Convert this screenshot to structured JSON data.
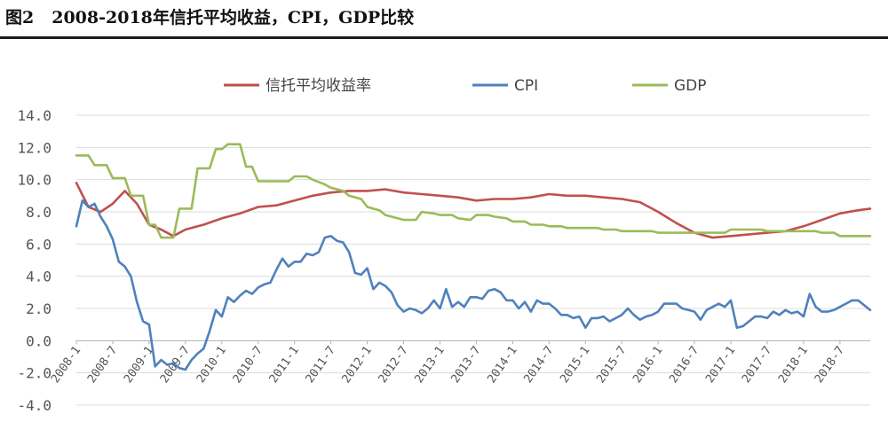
{
  "figure": {
    "number": "图2",
    "title": "2008-2018年信托平均收益，CPI，GDP比较"
  },
  "colors": {
    "trust": "#c0504d",
    "cpi": "#4f81bd",
    "gdp": "#9bbb59",
    "grid": "#dcdcdc",
    "axis": "#b0b0b0"
  },
  "chart_data": {
    "type": "line",
    "ylim": [
      -4.0,
      14.0
    ],
    "yticks": [
      "14.0",
      "12.0",
      "10.0",
      "8.0",
      "6.0",
      "4.0",
      "2.0",
      "0.0",
      "-2.0",
      "-4.0"
    ],
    "x_start": "2008-01",
    "x_end": "2018-12",
    "xticks": [
      "2008-1",
      "2008-7",
      "2009-1",
      "2009-7",
      "2010-1",
      "2010-7",
      "2011-1",
      "2011-7",
      "2012-1",
      "2012-7",
      "2013-1",
      "2013-7",
      "2014-1",
      "2014-7",
      "2015-1",
      "2015-7",
      "2016-1",
      "2016-7",
      "2017-1",
      "2017-7",
      "2018-1",
      "2018-7"
    ],
    "grid": true,
    "legend_position": "top",
    "series": [
      {
        "name": "信托平均收益率",
        "color_key": "trust",
        "points": [
          [
            "2008-01",
            9.8
          ],
          [
            "2008-03",
            8.3
          ],
          [
            "2008-05",
            8.0
          ],
          [
            "2008-07",
            8.5
          ],
          [
            "2008-09",
            9.3
          ],
          [
            "2008-11",
            8.5
          ],
          [
            "2009-01",
            7.2
          ],
          [
            "2009-03",
            6.9
          ],
          [
            "2009-05",
            6.5
          ],
          [
            "2009-07",
            6.9
          ],
          [
            "2009-10",
            7.2
          ],
          [
            "2010-01",
            7.6
          ],
          [
            "2010-04",
            7.9
          ],
          [
            "2010-07",
            8.3
          ],
          [
            "2010-10",
            8.4
          ],
          [
            "2011-01",
            8.7
          ],
          [
            "2011-04",
            9.0
          ],
          [
            "2011-07",
            9.2
          ],
          [
            "2011-10",
            9.3
          ],
          [
            "2012-01",
            9.3
          ],
          [
            "2012-04",
            9.4
          ],
          [
            "2012-07",
            9.2
          ],
          [
            "2012-10",
            9.1
          ],
          [
            "2013-01",
            9.0
          ],
          [
            "2013-04",
            8.9
          ],
          [
            "2013-07",
            8.7
          ],
          [
            "2013-10",
            8.8
          ],
          [
            "2014-01",
            8.8
          ],
          [
            "2014-04",
            8.9
          ],
          [
            "2014-07",
            9.1
          ],
          [
            "2014-10",
            9.0
          ],
          [
            "2015-01",
            9.0
          ],
          [
            "2015-04",
            8.9
          ],
          [
            "2015-07",
            8.8
          ],
          [
            "2015-10",
            8.6
          ],
          [
            "2016-01",
            8.0
          ],
          [
            "2016-04",
            7.3
          ],
          [
            "2016-07",
            6.7
          ],
          [
            "2016-10",
            6.4
          ],
          [
            "2017-01",
            6.5
          ],
          [
            "2017-04",
            6.6
          ],
          [
            "2017-07",
            6.7
          ],
          [
            "2017-10",
            6.8
          ],
          [
            "2018-01",
            7.1
          ],
          [
            "2018-04",
            7.5
          ],
          [
            "2018-07",
            7.9
          ],
          [
            "2018-10",
            8.1
          ],
          [
            "2018-12",
            8.2
          ]
        ]
      },
      {
        "name": "CPI",
        "color_key": "cpi",
        "points": [
          [
            "2008-01",
            7.1
          ],
          [
            "2008-02",
            8.7
          ],
          [
            "2008-03",
            8.3
          ],
          [
            "2008-04",
            8.5
          ],
          [
            "2008-05",
            7.7
          ],
          [
            "2008-06",
            7.1
          ],
          [
            "2008-07",
            6.3
          ],
          [
            "2008-08",
            4.9
          ],
          [
            "2008-09",
            4.6
          ],
          [
            "2008-10",
            4.0
          ],
          [
            "2008-11",
            2.4
          ],
          [
            "2008-12",
            1.2
          ],
          [
            "2009-01",
            1.0
          ],
          [
            "2009-02",
            -1.6
          ],
          [
            "2009-03",
            -1.2
          ],
          [
            "2009-04",
            -1.5
          ],
          [
            "2009-05",
            -1.4
          ],
          [
            "2009-06",
            -1.7
          ],
          [
            "2009-07",
            -1.8
          ],
          [
            "2009-08",
            -1.2
          ],
          [
            "2009-09",
            -0.8
          ],
          [
            "2009-10",
            -0.5
          ],
          [
            "2009-11",
            0.6
          ],
          [
            "2009-12",
            1.9
          ],
          [
            "2010-01",
            1.5
          ],
          [
            "2010-02",
            2.7
          ],
          [
            "2010-03",
            2.4
          ],
          [
            "2010-04",
            2.8
          ],
          [
            "2010-05",
            3.1
          ],
          [
            "2010-06",
            2.9
          ],
          [
            "2010-07",
            3.3
          ],
          [
            "2010-08",
            3.5
          ],
          [
            "2010-09",
            3.6
          ],
          [
            "2010-10",
            4.4
          ],
          [
            "2010-11",
            5.1
          ],
          [
            "2010-12",
            4.6
          ],
          [
            "2011-01",
            4.9
          ],
          [
            "2011-02",
            4.9
          ],
          [
            "2011-03",
            5.4
          ],
          [
            "2011-04",
            5.3
          ],
          [
            "2011-05",
            5.5
          ],
          [
            "2011-06",
            6.4
          ],
          [
            "2011-07",
            6.5
          ],
          [
            "2011-08",
            6.2
          ],
          [
            "2011-09",
            6.1
          ],
          [
            "2011-10",
            5.5
          ],
          [
            "2011-11",
            4.2
          ],
          [
            "2011-12",
            4.1
          ],
          [
            "2012-01",
            4.5
          ],
          [
            "2012-02",
            3.2
          ],
          [
            "2012-03",
            3.6
          ],
          [
            "2012-04",
            3.4
          ],
          [
            "2012-05",
            3.0
          ],
          [
            "2012-06",
            2.2
          ],
          [
            "2012-07",
            1.8
          ],
          [
            "2012-08",
            2.0
          ],
          [
            "2012-09",
            1.9
          ],
          [
            "2012-10",
            1.7
          ],
          [
            "2012-11",
            2.0
          ],
          [
            "2012-12",
            2.5
          ],
          [
            "2013-01",
            2.0
          ],
          [
            "2013-02",
            3.2
          ],
          [
            "2013-03",
            2.1
          ],
          [
            "2013-04",
            2.4
          ],
          [
            "2013-05",
            2.1
          ],
          [
            "2013-06",
            2.7
          ],
          [
            "2013-07",
            2.7
          ],
          [
            "2013-08",
            2.6
          ],
          [
            "2013-09",
            3.1
          ],
          [
            "2013-10",
            3.2
          ],
          [
            "2013-11",
            3.0
          ],
          [
            "2013-12",
            2.5
          ],
          [
            "2014-01",
            2.5
          ],
          [
            "2014-02",
            2.0
          ],
          [
            "2014-03",
            2.4
          ],
          [
            "2014-04",
            1.8
          ],
          [
            "2014-05",
            2.5
          ],
          [
            "2014-06",
            2.3
          ],
          [
            "2014-07",
            2.3
          ],
          [
            "2014-08",
            2.0
          ],
          [
            "2014-09",
            1.6
          ],
          [
            "2014-10",
            1.6
          ],
          [
            "2014-11",
            1.4
          ],
          [
            "2014-12",
            1.5
          ],
          [
            "2015-01",
            0.8
          ],
          [
            "2015-02",
            1.4
          ],
          [
            "2015-03",
            1.4
          ],
          [
            "2015-04",
            1.5
          ],
          [
            "2015-05",
            1.2
          ],
          [
            "2015-06",
            1.4
          ],
          [
            "2015-07",
            1.6
          ],
          [
            "2015-08",
            2.0
          ],
          [
            "2015-09",
            1.6
          ],
          [
            "2015-10",
            1.3
          ],
          [
            "2015-11",
            1.5
          ],
          [
            "2015-12",
            1.6
          ],
          [
            "2016-01",
            1.8
          ],
          [
            "2016-02",
            2.3
          ],
          [
            "2016-03",
            2.3
          ],
          [
            "2016-04",
            2.3
          ],
          [
            "2016-05",
            2.0
          ],
          [
            "2016-06",
            1.9
          ],
          [
            "2016-07",
            1.8
          ],
          [
            "2016-08",
            1.3
          ],
          [
            "2016-09",
            1.9
          ],
          [
            "2016-10",
            2.1
          ],
          [
            "2016-11",
            2.3
          ],
          [
            "2016-12",
            2.1
          ],
          [
            "2017-01",
            2.5
          ],
          [
            "2017-02",
            0.8
          ],
          [
            "2017-03",
            0.9
          ],
          [
            "2017-04",
            1.2
          ],
          [
            "2017-05",
            1.5
          ],
          [
            "2017-06",
            1.5
          ],
          [
            "2017-07",
            1.4
          ],
          [
            "2017-08",
            1.8
          ],
          [
            "2017-09",
            1.6
          ],
          [
            "2017-10",
            1.9
          ],
          [
            "2017-11",
            1.7
          ],
          [
            "2017-12",
            1.8
          ],
          [
            "2018-01",
            1.5
          ],
          [
            "2018-02",
            2.9
          ],
          [
            "2018-03",
            2.1
          ],
          [
            "2018-04",
            1.8
          ],
          [
            "2018-05",
            1.8
          ],
          [
            "2018-06",
            1.9
          ],
          [
            "2018-07",
            2.1
          ],
          [
            "2018-08",
            2.3
          ],
          [
            "2018-09",
            2.5
          ],
          [
            "2018-10",
            2.5
          ],
          [
            "2018-11",
            2.2
          ],
          [
            "2018-12",
            1.9
          ]
        ]
      },
      {
        "name": "GDP",
        "color_key": "gdp",
        "points": [
          [
            "2008-01",
            11.5
          ],
          [
            "2008-03",
            11.5
          ],
          [
            "2008-04",
            10.9
          ],
          [
            "2008-06",
            10.9
          ],
          [
            "2008-07",
            10.1
          ],
          [
            "2008-09",
            10.1
          ],
          [
            "2008-10",
            9.0
          ],
          [
            "2008-12",
            9.0
          ],
          [
            "2009-01",
            7.2
          ],
          [
            "2009-02",
            7.2
          ],
          [
            "2009-03",
            6.4
          ],
          [
            "2009-05",
            6.4
          ],
          [
            "2009-06",
            8.2
          ],
          [
            "2009-08",
            8.2
          ],
          [
            "2009-09",
            10.7
          ],
          [
            "2009-11",
            10.7
          ],
          [
            "2009-12",
            11.9
          ],
          [
            "2010-01",
            11.9
          ],
          [
            "2010-02",
            12.2
          ],
          [
            "2010-04",
            12.2
          ],
          [
            "2010-05",
            10.8
          ],
          [
            "2010-06",
            10.8
          ],
          [
            "2010-07",
            9.9
          ],
          [
            "2010-09",
            9.9
          ],
          [
            "2010-10",
            9.9
          ],
          [
            "2010-12",
            9.9
          ],
          [
            "2011-01",
            10.2
          ],
          [
            "2011-03",
            10.2
          ],
          [
            "2011-04",
            10.0
          ],
          [
            "2011-06",
            9.7
          ],
          [
            "2011-07",
            9.5
          ],
          [
            "2011-09",
            9.3
          ],
          [
            "2011-10",
            9.0
          ],
          [
            "2011-12",
            8.8
          ],
          [
            "2012-01",
            8.3
          ],
          [
            "2012-03",
            8.1
          ],
          [
            "2012-04",
            7.8
          ],
          [
            "2012-06",
            7.6
          ],
          [
            "2012-07",
            7.5
          ],
          [
            "2012-09",
            7.5
          ],
          [
            "2012-10",
            8.0
          ],
          [
            "2012-12",
            7.9
          ],
          [
            "2013-01",
            7.8
          ],
          [
            "2013-03",
            7.8
          ],
          [
            "2013-04",
            7.6
          ],
          [
            "2013-06",
            7.5
          ],
          [
            "2013-07",
            7.8
          ],
          [
            "2013-09",
            7.8
          ],
          [
            "2013-10",
            7.7
          ],
          [
            "2013-12",
            7.6
          ],
          [
            "2014-01",
            7.4
          ],
          [
            "2014-03",
            7.4
          ],
          [
            "2014-04",
            7.2
          ],
          [
            "2014-06",
            7.2
          ],
          [
            "2014-07",
            7.1
          ],
          [
            "2014-09",
            7.1
          ],
          [
            "2014-10",
            7.0
          ],
          [
            "2014-12",
            7.0
          ],
          [
            "2015-01",
            7.0
          ],
          [
            "2015-03",
            7.0
          ],
          [
            "2015-04",
            6.9
          ],
          [
            "2015-06",
            6.9
          ],
          [
            "2015-07",
            6.8
          ],
          [
            "2015-12",
            6.8
          ],
          [
            "2016-01",
            6.7
          ],
          [
            "2016-12",
            6.7
          ],
          [
            "2017-01",
            6.9
          ],
          [
            "2017-06",
            6.9
          ],
          [
            "2017-07",
            6.8
          ],
          [
            "2017-12",
            6.8
          ],
          [
            "2018-01",
            6.8
          ],
          [
            "2018-03",
            6.8
          ],
          [
            "2018-04",
            6.7
          ],
          [
            "2018-06",
            6.7
          ],
          [
            "2018-07",
            6.5
          ],
          [
            "2018-12",
            6.5
          ]
        ]
      }
    ]
  }
}
